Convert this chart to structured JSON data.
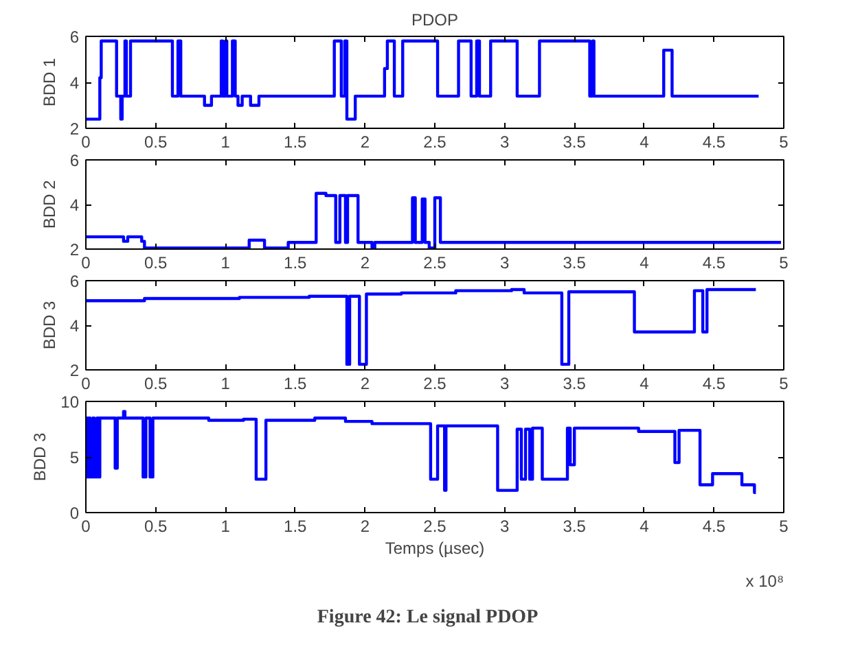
{
  "chart_data": [
    {
      "type": "step",
      "title": "PDOP",
      "ylabel": "BDD 1",
      "xlim": [
        0,
        5
      ],
      "ylim": [
        2,
        6
      ],
      "xticks": [
        0,
        0.5,
        1,
        1.5,
        2,
        2.5,
        3,
        3.5,
        4,
        4.5,
        5
      ],
      "yticks": [
        2,
        4,
        6
      ],
      "grid": false,
      "marker": "none",
      "line_style": "solid",
      "series": [
        {
          "color": "#0000ff",
          "x": [
            0,
            0.1,
            0.11,
            0.22,
            0.25,
            0.26,
            0.28,
            0.29,
            0.32,
            0.62,
            0.66,
            0.68,
            0.85,
            0.9,
            0.97,
            0.98,
            1.0,
            1.01,
            1.05,
            1.07,
            1.09,
            1.12,
            1.18,
            1.24,
            1.78,
            1.83,
            1.855,
            1.87,
            1.93,
            2.14,
            2.16,
            2.21,
            2.27,
            2.52,
            2.67,
            2.76,
            2.8,
            2.82,
            2.9,
            3.09,
            3.25,
            3.61,
            3.63,
            3.64,
            4.14,
            4.2,
            4.82
          ],
          "values": [
            2.4,
            4.2,
            5.8,
            3.4,
            2.4,
            3.4,
            5.8,
            3.4,
            5.8,
            3.4,
            5.8,
            3.4,
            3.0,
            3.4,
            5.8,
            3.4,
            5.8,
            3.4,
            5.8,
            3.4,
            3.0,
            3.4,
            3.0,
            3.4,
            5.8,
            3.4,
            5.8,
            2.4,
            3.4,
            4.6,
            5.8,
            3.4,
            5.8,
            3.4,
            5.8,
            3.4,
            5.8,
            3.4,
            5.8,
            3.4,
            5.8,
            3.4,
            5.8,
            3.4,
            5.4,
            3.4,
            3.4
          ]
        }
      ]
    },
    {
      "type": "step",
      "ylabel": "BDD 2",
      "xlim": [
        0,
        5
      ],
      "ylim": [
        2,
        6
      ],
      "xticks": [
        0,
        0.5,
        1,
        1.5,
        2,
        2.5,
        3,
        3.5,
        4,
        4.5,
        5
      ],
      "yticks": [
        2,
        4,
        6
      ],
      "grid": false,
      "marker": "none",
      "line_style": "solid",
      "series": [
        {
          "color": "#0000ff",
          "x": [
            0,
            0.27,
            0.3,
            0.4,
            0.42,
            1.17,
            1.28,
            1.45,
            1.65,
            1.72,
            1.79,
            1.82,
            1.86,
            1.875,
            1.95,
            2.05,
            2.07,
            2.34,
            2.36,
            2.41,
            2.43,
            2.46,
            2.5,
            2.54,
            4.98
          ],
          "values": [
            2.55,
            2.35,
            2.55,
            2.35,
            2.05,
            2.4,
            2.05,
            2.3,
            4.5,
            4.4,
            2.3,
            4.4,
            2.3,
            4.4,
            2.3,
            2.05,
            2.3,
            4.3,
            2.3,
            4.25,
            2.3,
            2.05,
            4.3,
            2.3,
            2.3
          ]
        }
      ]
    },
    {
      "type": "step",
      "ylabel": "BDD 3",
      "xlim": [
        0,
        5
      ],
      "ylim": [
        2,
        6
      ],
      "xticks": [
        0,
        0.5,
        1,
        1.5,
        2,
        2.5,
        3,
        3.5,
        4,
        4.5,
        5
      ],
      "yticks": [
        2,
        4,
        6
      ],
      "grid": false,
      "marker": "none",
      "line_style": "solid",
      "series": [
        {
          "color": "#0000ff",
          "x": [
            0,
            0.42,
            1.1,
            1.6,
            1.87,
            1.89,
            1.96,
            2.01,
            2.26,
            2.65,
            3.05,
            3.14,
            3.41,
            3.46,
            3.93,
            4.36,
            4.42,
            4.45,
            4.8
          ],
          "values": [
            5.1,
            5.2,
            5.25,
            5.3,
            2.25,
            5.3,
            2.25,
            5.4,
            5.45,
            5.55,
            5.6,
            5.45,
            2.25,
            5.5,
            3.7,
            5.55,
            3.7,
            5.6,
            5.6
          ]
        }
      ]
    },
    {
      "type": "step",
      "ylabel": "BDD 3",
      "xlabel": "Temps (µsec)",
      "annotations": [
        "x 10⁸",
        "Figure 42:    Le signal PDOP"
      ],
      "xlim": [
        0,
        5
      ],
      "ylim": [
        0,
        10
      ],
      "xticks": [
        0,
        0.5,
        1,
        1.5,
        2,
        2.5,
        3,
        3.5,
        4,
        4.5,
        5
      ],
      "yticks": [
        0,
        5,
        10
      ],
      "grid": false,
      "marker": "none",
      "line_style": "solid",
      "series": [
        {
          "color": "#0000ff",
          "x": [
            0,
            0.01,
            0.02,
            0.03,
            0.05,
            0.06,
            0.08,
            0.09,
            0.1,
            0.21,
            0.225,
            0.27,
            0.28,
            0.41,
            0.43,
            0.46,
            0.48,
            0.88,
            1.13,
            1.22,
            1.29,
            1.64,
            1.86,
            2.05,
            2.47,
            2.52,
            2.57,
            2.58,
            2.95,
            3.09,
            3.12,
            3.15,
            3.18,
            3.2,
            3.27,
            3.45,
            3.47,
            3.5,
            3.96,
            4.22,
            4.25,
            4.4,
            4.49,
            4.7,
            4.79,
            4.8
          ],
          "values": [
            8.5,
            3.2,
            8.5,
            3.2,
            8.5,
            3.2,
            8.5,
            3.2,
            8.5,
            4.0,
            8.5,
            9.1,
            8.5,
            3.2,
            8.5,
            3.2,
            8.5,
            8.3,
            8.4,
            3.0,
            8.3,
            8.5,
            8.2,
            8.0,
            3.0,
            7.8,
            2.0,
            7.8,
            2.0,
            7.5,
            3.0,
            7.5,
            3.0,
            7.6,
            3.0,
            7.6,
            4.3,
            7.6,
            7.3,
            4.5,
            7.4,
            2.5,
            3.5,
            2.5,
            1.8,
            1.8
          ]
        }
      ]
    }
  ]
}
